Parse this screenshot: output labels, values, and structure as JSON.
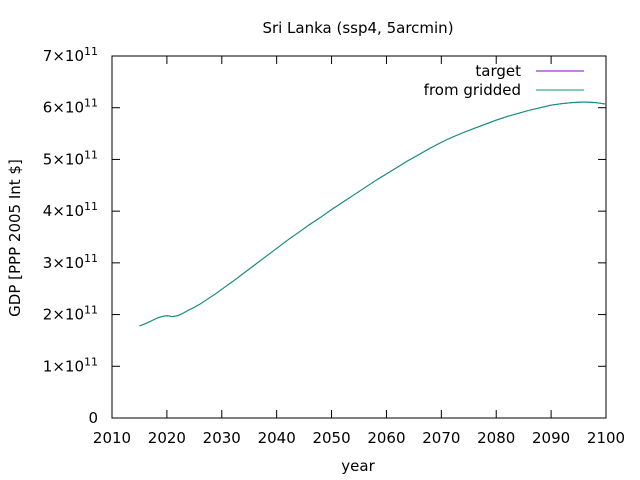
{
  "chart_data": {
    "type": "line",
    "title": "Sri Lanka (ssp4, 5arcmin)",
    "xlabel": "year",
    "ylabel": "GDP [PPP 2005 Int $]",
    "xlim": [
      2010,
      2100
    ],
    "ylim": [
      0,
      700000000000
    ],
    "x_ticks": [
      2010,
      2020,
      2030,
      2040,
      2050,
      2060,
      2070,
      2080,
      2090,
      2100
    ],
    "y_ticks": [
      {
        "value": 0,
        "mantissa": "0",
        "exp": ""
      },
      {
        "value": 100000000000,
        "mantissa": "1×10",
        "exp": "11"
      },
      {
        "value": 200000000000,
        "mantissa": "2×10",
        "exp": "11"
      },
      {
        "value": 300000000000,
        "mantissa": "3×10",
        "exp": "11"
      },
      {
        "value": 400000000000,
        "mantissa": "4×10",
        "exp": "11"
      },
      {
        "value": 500000000000,
        "mantissa": "5×10",
        "exp": "11"
      },
      {
        "value": 600000000000,
        "mantissa": "6×10",
        "exp": "11"
      },
      {
        "value": 700000000000,
        "mantissa": "7×10",
        "exp": "11"
      }
    ],
    "grid": false,
    "legend_position": "top-right",
    "x": [
      2015,
      2016,
      2017,
      2018,
      2019,
      2020,
      2021,
      2022,
      2023,
      2024,
      2025,
      2026,
      2027,
      2028,
      2029,
      2030,
      2032,
      2034,
      2036,
      2038,
      2040,
      2042,
      2044,
      2046,
      2048,
      2050,
      2052,
      2054,
      2056,
      2058,
      2060,
      2062,
      2064,
      2066,
      2068,
      2070,
      2072,
      2074,
      2076,
      2078,
      2080,
      2082,
      2084,
      2086,
      2088,
      2090,
      2092,
      2094,
      2096,
      2098,
      2100
    ],
    "series": [
      {
        "name": "target",
        "color": "#9400d3",
        "values": [
          178,
          182,
          187,
          192,
          196,
          198,
          196,
          198,
          203,
          209,
          214,
          220,
          227,
          234,
          241,
          249,
          264,
          280,
          296,
          312,
          328,
          344,
          359,
          374,
          388,
          403,
          417,
          431,
          445,
          459,
          472,
          485,
          498,
          510,
          522,
          533,
          543,
          552,
          560,
          568,
          576,
          583,
          589,
          595,
          600,
          605,
          608,
          610,
          611,
          610,
          607
        ]
      },
      {
        "name": "from gridded",
        "color": "#009e73",
        "values": [
          178,
          182,
          187,
          192,
          196,
          198,
          196,
          198,
          203,
          209,
          214,
          220,
          227,
          234,
          241,
          249,
          264,
          280,
          296,
          312,
          328,
          344,
          359,
          374,
          388,
          403,
          417,
          431,
          445,
          459,
          472,
          485,
          498,
          510,
          522,
          533,
          543,
          552,
          560,
          568,
          576,
          583,
          589,
          595,
          600,
          605,
          608,
          610,
          611,
          610,
          607
        ]
      }
    ],
    "values_unit_scale": 1000000000
  }
}
